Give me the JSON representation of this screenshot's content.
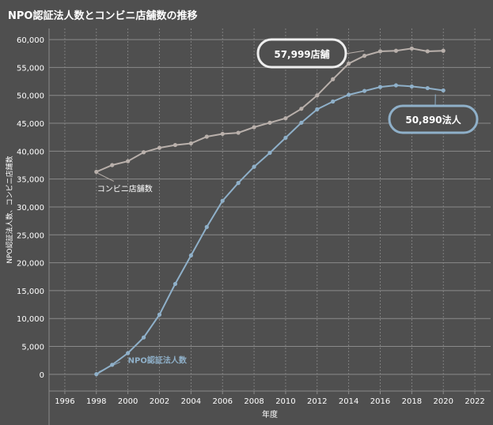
{
  "title": "NPO認証法人数とコンビニ店舗数の推移",
  "colors": {
    "background": "#4f4f4f",
    "grid": "#8a8a8a",
    "text": "#ffffff",
    "npo": "#8fb0c9",
    "convenience": "#b9b0ab"
  },
  "chart_data": {
    "type": "line",
    "title": "NPO認証法人数とコンビニ店舗数の推移",
    "xlabel": "年度",
    "ylabel": "NPO認証法人数、コンビニ店舗数",
    "xlim": [
      1995,
      2023
    ],
    "ylim": [
      -3000,
      62000
    ],
    "x_ticks": [
      1996,
      1998,
      2000,
      2002,
      2004,
      2006,
      2008,
      2010,
      2012,
      2014,
      2016,
      2018,
      2020,
      2022
    ],
    "y_ticks": [
      0,
      5000,
      10000,
      15000,
      20000,
      25000,
      30000,
      35000,
      40000,
      45000,
      50000,
      55000,
      60000
    ],
    "y_tick_labels": [
      "0",
      "5,000",
      "10,000",
      "15,000",
      "20,000",
      "25,000",
      "30,000",
      "35,000",
      "40,000",
      "45,000",
      "50,000",
      "55,000",
      "60,000"
    ],
    "grid": true,
    "legend": "none",
    "series": [
      {
        "name": "コンビニ店舗数",
        "x": [
          1998,
          1999,
          2000,
          2001,
          2002,
          2003,
          2004,
          2005,
          2006,
          2007,
          2008,
          2009,
          2010,
          2011,
          2012,
          2013,
          2014,
          2015,
          2016,
          2017,
          2018,
          2019,
          2020
        ],
        "values": [
          36300,
          37500,
          38200,
          39800,
          40600,
          41100,
          41400,
          42600,
          43100,
          43300,
          44300,
          45100,
          45900,
          47600,
          50000,
          52900,
          55700,
          57100,
          57900,
          58000,
          58400,
          57900,
          57999
        ]
      },
      {
        "name": "NPO認証法人数",
        "x": [
          1998,
          1999,
          2000,
          2001,
          2002,
          2003,
          2004,
          2005,
          2006,
          2007,
          2008,
          2009,
          2010,
          2011,
          2012,
          2013,
          2014,
          2015,
          2016,
          2017,
          2018,
          2019,
          2020
        ],
        "values": [
          23,
          1700,
          3800,
          6600,
          10700,
          16200,
          21300,
          26400,
          31100,
          34300,
          37200,
          39700,
          42400,
          45100,
          47500,
          48900,
          50100,
          50800,
          51500,
          51800,
          51600,
          51300,
          50890
        ]
      }
    ],
    "annotations": [
      {
        "text": "57,999店舗",
        "series": 0,
        "x": 2020
      },
      {
        "text": "50,890法人",
        "series": 1,
        "x": 2020
      }
    ],
    "series_labels": [
      {
        "text": "コンビニ店舗数",
        "series": 0
      },
      {
        "text": "NPO認証法人数",
        "series": 1
      }
    ]
  }
}
